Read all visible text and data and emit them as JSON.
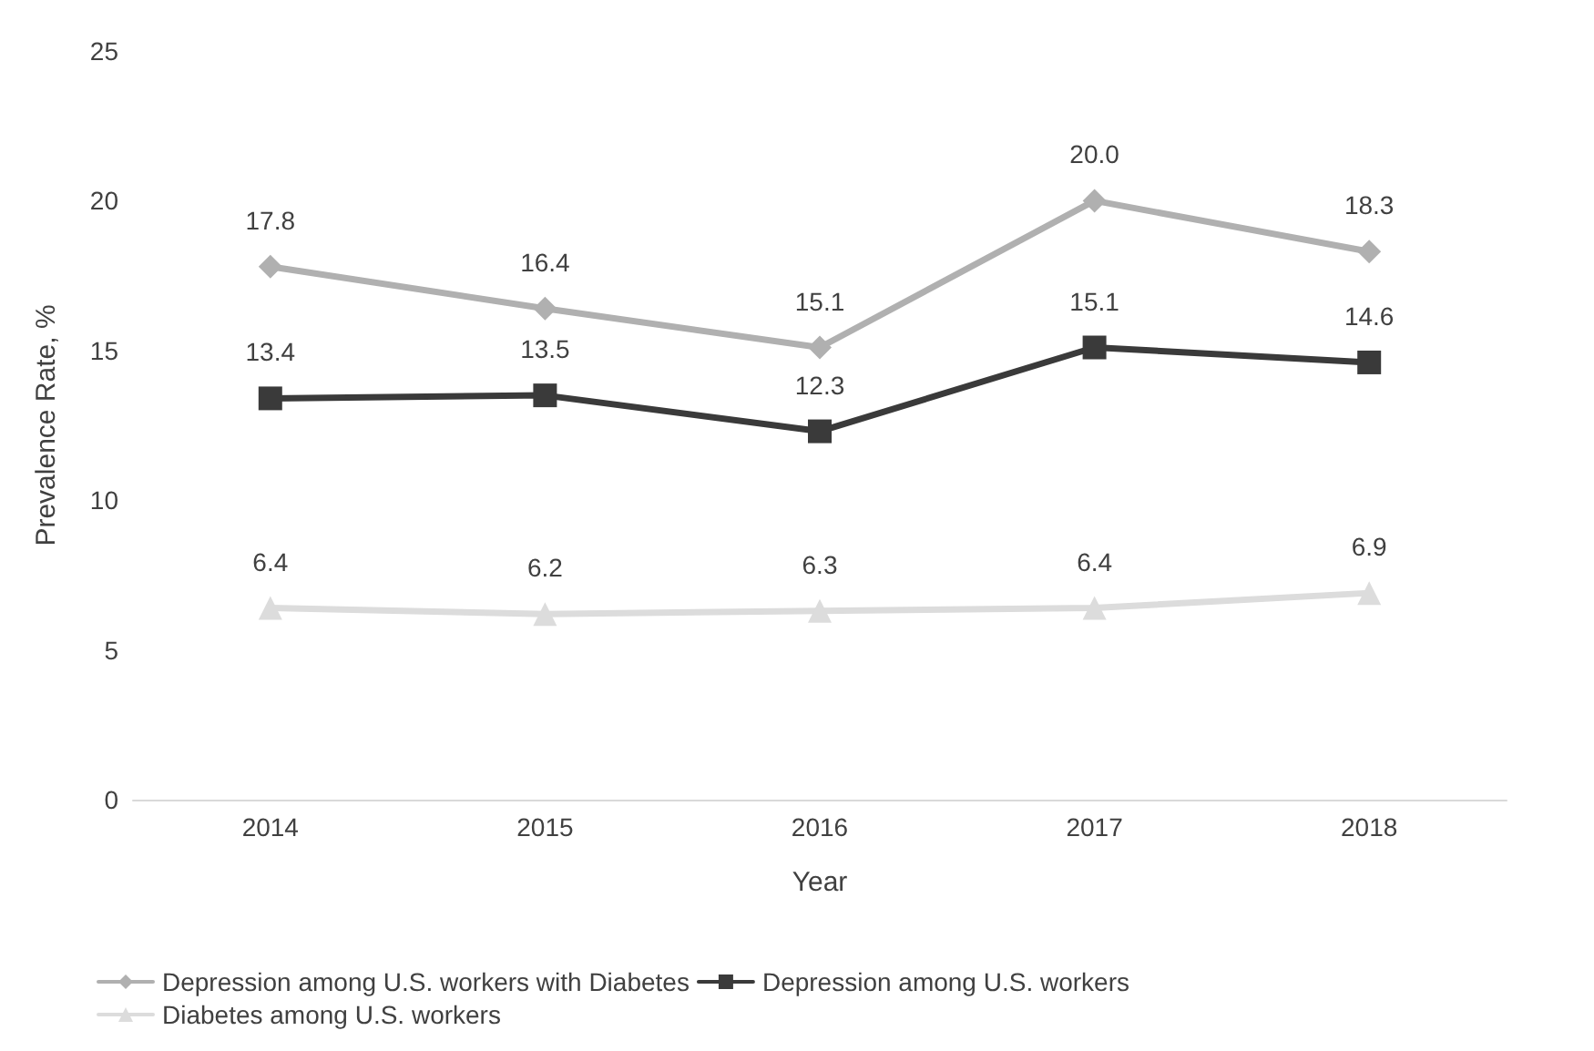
{
  "chart_data": {
    "type": "line",
    "xlabel": "Year",
    "ylabel": "Prevalence Rate, %",
    "categories": [
      "2014",
      "2015",
      "2016",
      "2017",
      "2018"
    ],
    "series": [
      {
        "name": "Depression among U.S. workers with Diabetes",
        "color": "#b0b0b0",
        "marker": "diamond",
        "values": [
          17.8,
          16.4,
          15.1,
          20.0,
          18.3
        ],
        "value_labels": [
          "17.8",
          "16.4",
          "15.1",
          "20.0",
          "18.3"
        ]
      },
      {
        "name": "Depression among U.S. workers",
        "color": "#3a3a3a",
        "marker": "square",
        "values": [
          13.4,
          13.5,
          12.3,
          15.1,
          14.6
        ]
      },
      {
        "name": "Diabetes among U.S. workers",
        "color": "#dcdcdc",
        "marker": "triangle",
        "values": [
          6.4,
          6.2,
          6.3,
          6.4,
          6.9
        ]
      }
    ],
    "ylim": [
      0,
      25
    ],
    "yticks": [
      0,
      5,
      10,
      15,
      20,
      25
    ],
    "grid": false,
    "legend": "bottom",
    "data_labels": true,
    "line_style": "solid"
  }
}
